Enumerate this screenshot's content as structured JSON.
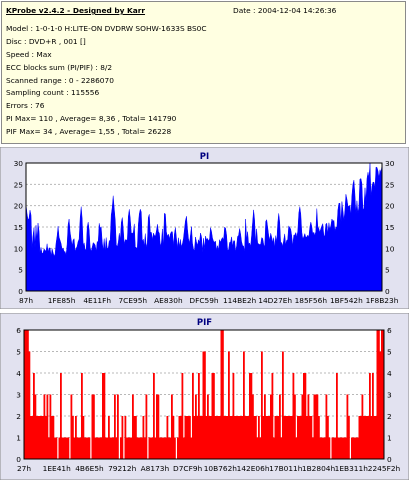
{
  "info": {
    "title": "KProbe v2.4.2 - Designed by Karr",
    "date": "Date : 2004-12-04 14:26:36",
    "lines": [
      "Model : 1-0-1-0 H:LITE-ON DVDRW SOHW-1633S BS0C",
      "Disc : DVD+R , 001 []",
      "Speed : Max",
      "ECC blocks sum (PI/PIF) : 8/2",
      "Scanned range : 0 - 2286070",
      "Sampling count : 115556",
      "Errors : 76",
      "PI Max= 110 , Average= 8,36 , Total= 141790",
      "PIF Max= 34 , Average= 1,55 , Total= 26228"
    ]
  },
  "colors": {
    "info_bg": "#ffffe1",
    "pi_fill": "#0000ff",
    "pif_fill": "#ff0000",
    "plot_bg": "#ffffff",
    "panel_bg": "#e2e2f0",
    "title_text": "#000080"
  },
  "chart_data": [
    {
      "type": "area",
      "title": "PI",
      "ylim": [
        0,
        30
      ],
      "yticks": [
        0,
        5,
        10,
        15,
        20,
        25,
        30
      ],
      "xticks": [
        "87h",
        "1FE85h",
        "4E11Fh",
        "7CE95h",
        "AE830h",
        "DFC59h",
        "114BE2h",
        "14D27Eh",
        "185F56h",
        "1BF542h",
        "1F8B23h"
      ],
      "grid": true,
      "series": [
        {
          "baseline_shape": [
            [
              0.0,
              20
            ],
            [
              0.01,
              13
            ],
            [
              0.03,
              9.5
            ],
            [
              0.1,
              10
            ],
            [
              0.2,
              11
            ],
            [
              0.3,
              12
            ],
            [
              0.4,
              12
            ],
            [
              0.5,
              11
            ],
            [
              0.6,
              11
            ],
            [
              0.7,
              12
            ],
            [
              0.8,
              13
            ],
            [
              0.86,
              15
            ],
            [
              0.9,
              18
            ],
            [
              0.94,
              20
            ],
            [
              0.97,
              24
            ],
            [
              1.0,
              28
            ]
          ],
          "peaks": [
            [
              0.012,
              20
            ],
            [
              0.035,
              16
            ],
            [
              0.09,
              15
            ],
            [
              0.12,
              17
            ],
            [
              0.155,
              19
            ],
            [
              0.175,
              16
            ],
            [
              0.21,
              15
            ],
            [
              0.245,
              22
            ],
            [
              0.27,
              17
            ],
            [
              0.29,
              19
            ],
            [
              0.32,
              20
            ],
            [
              0.345,
              18
            ],
            [
              0.37,
              16
            ],
            [
              0.39,
              18
            ],
            [
              0.42,
              15
            ],
            [
              0.45,
              17
            ],
            [
              0.49,
              14
            ],
            [
              0.52,
              15
            ],
            [
              0.56,
              16
            ],
            [
              0.6,
              15
            ],
            [
              0.64,
              19
            ],
            [
              0.675,
              17
            ],
            [
              0.71,
              18
            ],
            [
              0.74,
              16
            ],
            [
              0.77,
              20
            ],
            [
              0.8,
              16
            ],
            [
              0.83,
              15
            ],
            [
              0.86,
              18
            ],
            [
              0.88,
              21
            ],
            [
              0.9,
              23
            ],
            [
              0.92,
              26
            ],
            [
              0.94,
              27
            ],
            [
              0.96,
              28
            ],
            [
              0.985,
              30
            ]
          ]
        }
      ]
    },
    {
      "type": "bar",
      "title": "PIF",
      "ylim": [
        0,
        6
      ],
      "yticks": [
        0,
        1,
        2,
        3,
        4,
        5,
        6
      ],
      "xticks": [
        "27h",
        "1EE41h",
        "4B6E5h",
        "79212h",
        "A8173h",
        "D7CF9h",
        "10B762h",
        "142E06h",
        "17B011h",
        "1B2804h",
        "1EB311h",
        "2245F2h"
      ],
      "grid": true,
      "series": [
        {
          "segments": [
            [
              0.0,
              0.01,
              6,
              1
            ],
            [
              0.01,
              0.06,
              1,
              2
            ],
            [
              0.06,
              0.43,
              1,
              1
            ],
            [
              0.43,
              0.6,
              2,
              2
            ],
            [
              0.6,
              0.8,
              2,
              2
            ],
            [
              0.8,
              0.93,
              2,
              1
            ],
            [
              0.93,
              0.98,
              2,
              2
            ],
            [
              0.98,
              1.0,
              6,
              1
            ]
          ],
          "spikes": [
            [
              0.012,
              5
            ],
            [
              0.025,
              4
            ],
            [
              0.07,
              3
            ],
            [
              0.1,
              4
            ],
            [
              0.13,
              3
            ],
            [
              0.16,
              4
            ],
            [
              0.19,
              3
            ],
            [
              0.22,
              4
            ],
            [
              0.26,
              3
            ],
            [
              0.3,
              3
            ],
            [
              0.34,
              3
            ],
            [
              0.37,
              3
            ],
            [
              0.41,
              3
            ],
            [
              0.44,
              4
            ],
            [
              0.47,
              4
            ],
            [
              0.5,
              5
            ],
            [
              0.525,
              4
            ],
            [
              0.55,
              6
            ],
            [
              0.58,
              4
            ],
            [
              0.61,
              5
            ],
            [
              0.63,
              4
            ],
            [
              0.66,
              5
            ],
            [
              0.69,
              4
            ],
            [
              0.72,
              5
            ],
            [
              0.75,
              4
            ],
            [
              0.78,
              4
            ],
            [
              0.81,
              3
            ],
            [
              0.84,
              3
            ],
            [
              0.87,
              4
            ],
            [
              0.9,
              3
            ],
            [
              0.94,
              3
            ],
            [
              0.97,
              4
            ],
            [
              0.99,
              5
            ]
          ]
        }
      ]
    }
  ]
}
